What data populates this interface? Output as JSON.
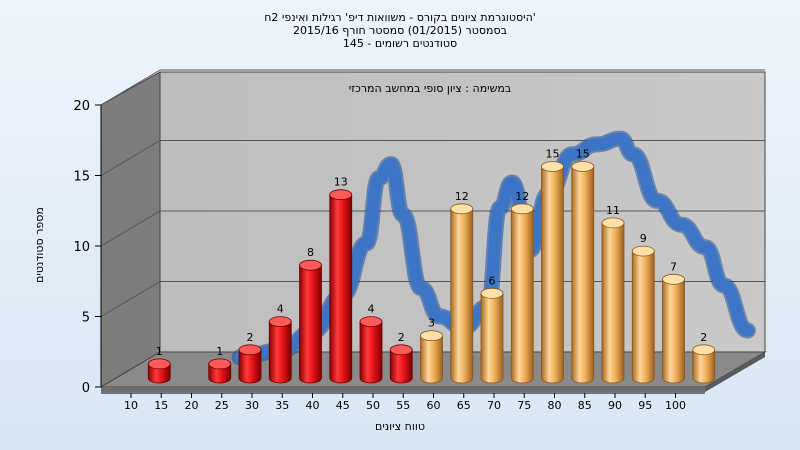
{
  "chart_data": {
    "type": "bar",
    "title_lines": [
      "היסטוגרמת ציונים בקורס - משוואות דיפ' רגילות ואינפי 2ח'",
      "בסמסטר  (01/2015)  סמסטר חורף 2015/16",
      "145 - סטודנטים רשומים"
    ],
    "annotation": "במשימה : ציון סופי במחשב המרכזי",
    "xlabel": "טווח ציונים",
    "ylabel": "מספר סטודנטים",
    "ylim": [
      0,
      20
    ],
    "yticks": [
      0,
      5,
      10,
      15,
      20
    ],
    "xticks": [
      "10",
      "15",
      "20",
      "25",
      "30",
      "35",
      "40",
      "45",
      "50",
      "55",
      "60",
      "65",
      "70",
      "75",
      "80",
      "85",
      "90",
      "95",
      "100"
    ],
    "bars": [
      {
        "x": 15,
        "value": 1,
        "color": "red"
      },
      {
        "x": 25,
        "value": 1,
        "color": "red"
      },
      {
        "x": 30,
        "value": 2,
        "color": "red"
      },
      {
        "x": 35,
        "value": 4,
        "color": "red"
      },
      {
        "x": 40,
        "value": 8,
        "color": "red"
      },
      {
        "x": 45,
        "value": 13,
        "color": "red"
      },
      {
        "x": 50,
        "value": 4,
        "color": "red"
      },
      {
        "x": 55,
        "value": 2,
        "color": "red"
      },
      {
        "x": 60,
        "value": 3,
        "color": "orange"
      },
      {
        "x": 65,
        "value": 12,
        "color": "orange"
      },
      {
        "x": 70,
        "value": 6,
        "color": "orange"
      },
      {
        "x": 75,
        "value": 12,
        "color": "orange"
      },
      {
        "x": 80,
        "value": 15,
        "color": "orange"
      },
      {
        "x": 85,
        "value": 15,
        "color": "orange"
      },
      {
        "x": 90,
        "value": 11,
        "color": "orange"
      },
      {
        "x": 95,
        "value": 9,
        "color": "orange"
      },
      {
        "x": 100,
        "value": 7,
        "color": "orange"
      },
      {
        "x": 105,
        "value": 2,
        "color": "orange"
      }
    ],
    "trend_curve": [
      [
        23,
        0.9
      ],
      [
        30,
        1.4
      ],
      [
        35,
        2.7
      ],
      [
        40,
        5.3
      ],
      [
        44,
        9.0
      ],
      [
        46,
        13.6
      ],
      [
        48,
        14.6
      ],
      [
        50,
        11.0
      ],
      [
        53,
        5.8
      ],
      [
        56,
        3.8
      ],
      [
        60,
        3.0
      ],
      [
        64,
        4.5
      ],
      [
        66,
        11.5
      ],
      [
        68,
        13.3
      ],
      [
        71,
        8.5
      ],
      [
        74,
        12.5
      ],
      [
        78,
        15.3
      ],
      [
        82,
        16.0
      ],
      [
        86,
        16.4
      ],
      [
        88,
        15.3
      ],
      [
        92,
        12.0
      ],
      [
        96,
        10.3
      ],
      [
        100,
        8.7
      ],
      [
        103,
        6.0
      ],
      [
        107,
        2.8
      ]
    ],
    "colors": {
      "red_bar": "#e8141a",
      "orange_bar": "#f2b25c",
      "trend": "#3c74c6",
      "wall_back": "#c2c2c2",
      "wall_side": "#7d7d7d",
      "floor": "#8a8a8a"
    },
    "grid": true
  }
}
